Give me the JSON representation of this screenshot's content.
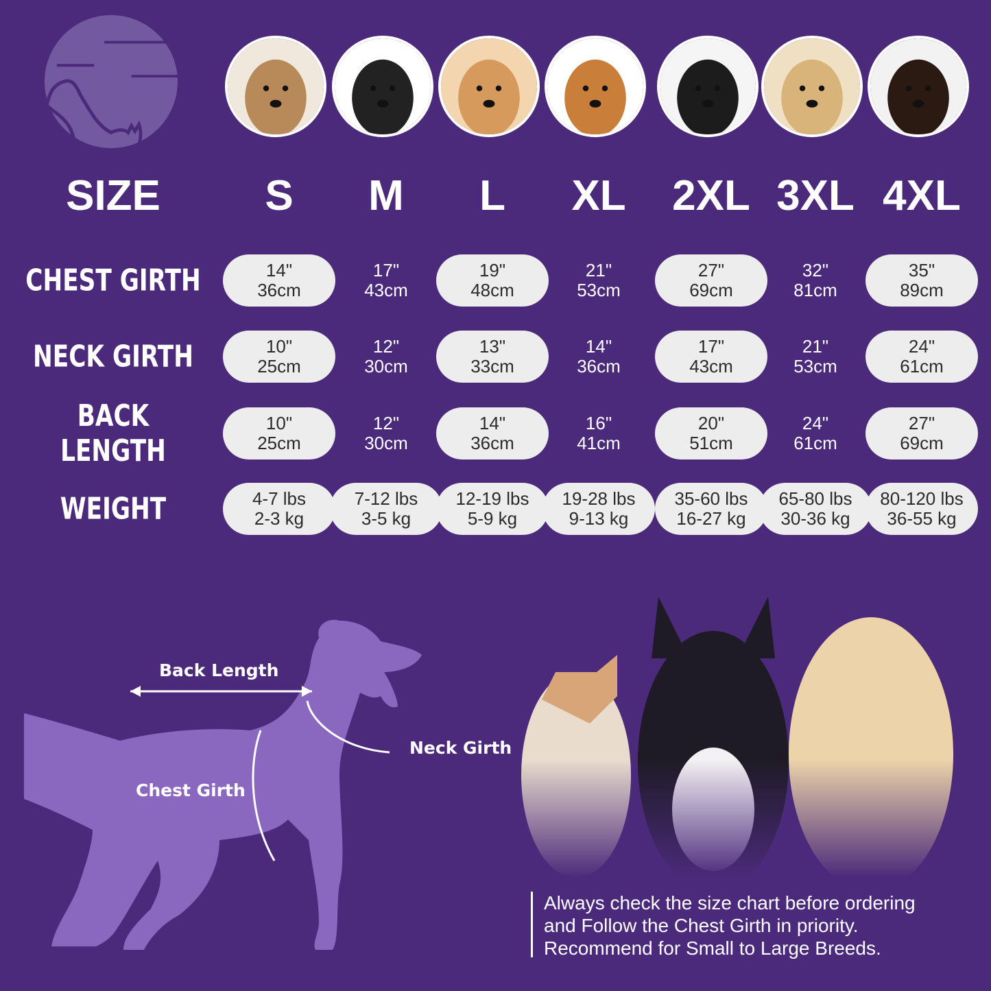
{
  "header": {
    "size_label": "SIZE",
    "sizes": [
      "S",
      "M",
      "L",
      "XL",
      "2XL",
      "3XL",
      "4XL"
    ]
  },
  "rows": [
    {
      "label": "CHEST GIRTH",
      "values": [
        [
          "14\"",
          "36cm"
        ],
        [
          "17\"",
          "43cm"
        ],
        [
          "19\"",
          "48cm"
        ],
        [
          "21\"",
          "53cm"
        ],
        [
          "27\"",
          "69cm"
        ],
        [
          "32\"",
          "81cm"
        ],
        [
          "35\"",
          "89cm"
        ]
      ]
    },
    {
      "label": "NECK GIRTH",
      "values": [
        [
          "10\"",
          "25cm"
        ],
        [
          "12\"",
          "30cm"
        ],
        [
          "13\"",
          "33cm"
        ],
        [
          "14\"",
          "36cm"
        ],
        [
          "17\"",
          "43cm"
        ],
        [
          "21\"",
          "53cm"
        ],
        [
          "24\"",
          "61cm"
        ]
      ]
    },
    {
      "label": "BACK LENGTH",
      "values": [
        [
          "10\"",
          "25cm"
        ],
        [
          "12\"",
          "30cm"
        ],
        [
          "14\"",
          "36cm"
        ],
        [
          "16\"",
          "41cm"
        ],
        [
          "20\"",
          "51cm"
        ],
        [
          "24\"",
          "61cm"
        ],
        [
          "27\"",
          "69cm"
        ]
      ]
    },
    {
      "label": "WEIGHT",
      "values": [
        [
          "4-7 lbs",
          "2-3 kg"
        ],
        [
          "7-12 lbs",
          "3-5 kg"
        ],
        [
          "12-19 lbs",
          "5-9 kg"
        ],
        [
          "19-28 lbs",
          "9-13 kg"
        ],
        [
          "35-60 lbs",
          "16-27 kg"
        ],
        [
          "65-80 lbs",
          "30-36 kg"
        ],
        [
          "80-120 lbs",
          "36-55 kg"
        ]
      ]
    }
  ],
  "diagram": {
    "back_length": "Back Length",
    "neck_girth": "Neck Girth",
    "chest_girth": "Chest Girth"
  },
  "note": [
    "Always check the size chart before ordering",
    "and Follow the Chest Girth in priority.",
    "Recommend for Small to Large Breeds."
  ],
  "colors": {
    "background": "#4b2a7b",
    "pill": "#eeeded",
    "silhouette": "#8a68c0",
    "logo": "#735aa0"
  }
}
